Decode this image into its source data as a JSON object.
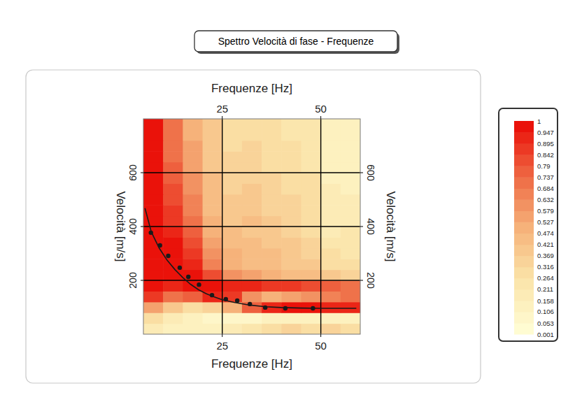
{
  "chart_data": {
    "type": "heatmap",
    "title": "Spettro Velocità di fase - Frequenze",
    "x_label": "Frequenze [Hz]",
    "y_label": "Velocità [m/s]",
    "xlim": [
      5,
      60
    ],
    "ylim": [
      0,
      800
    ],
    "xticks": [
      25,
      50
    ],
    "yticks": [
      200,
      400,
      600
    ],
    "grid": true,
    "cells": {
      "x_edges": [
        5,
        10,
        15,
        20,
        25,
        30,
        35,
        40,
        45,
        50,
        55,
        60
      ],
      "y_edges": [
        0,
        40,
        80,
        120,
        160,
        200,
        240,
        280,
        320,
        360,
        400,
        440,
        480,
        520,
        560,
        600,
        640,
        680,
        720,
        760,
        800
      ],
      "values": [
        [
          0.2,
          0.15,
          0.12,
          0.15,
          0.2,
          0.25,
          0.3,
          0.35,
          0.3,
          0.35,
          0.3
        ],
        [
          0.3,
          0.2,
          0.12,
          0.1,
          0.1,
          0.1,
          0.12,
          0.15,
          0.15,
          0.15,
          0.15
        ],
        [
          0.55,
          0.4,
          0.3,
          0.35,
          0.5,
          0.75,
          0.9,
          0.95,
          0.95,
          0.9,
          0.9
        ],
        [
          0.85,
          0.7,
          0.75,
          0.9,
          0.85,
          0.6,
          0.5,
          0.55,
          0.6,
          0.65,
          0.7
        ],
        [
          0.95,
          0.9,
          0.95,
          0.95,
          0.9,
          0.9,
          0.85,
          0.85,
          0.8,
          0.75,
          0.7
        ],
        [
          1,
          0.95,
          0.95,
          0.8,
          0.6,
          0.55,
          0.5,
          0.45,
          0.45,
          0.4,
          0.35
        ],
        [
          1,
          1,
          0.9,
          0.65,
          0.5,
          0.45,
          0.45,
          0.4,
          0.4,
          0.3,
          0.3
        ],
        [
          1,
          1,
          0.85,
          0.6,
          0.5,
          0.45,
          0.45,
          0.4,
          0.35,
          0.3,
          0.25
        ],
        [
          1,
          0.95,
          0.8,
          0.55,
          0.45,
          0.45,
          0.4,
          0.4,
          0.35,
          0.25,
          0.25
        ],
        [
          1,
          0.9,
          0.75,
          0.5,
          0.45,
          0.4,
          0.4,
          0.35,
          0.3,
          0.2,
          0.25
        ],
        [
          0.95,
          0.85,
          0.7,
          0.5,
          0.4,
          0.45,
          0.4,
          0.35,
          0.3,
          0.2,
          0.2
        ],
        [
          0.95,
          0.85,
          0.65,
          0.45,
          0.4,
          0.4,
          0.35,
          0.35,
          0.3,
          0.2,
          0.2
        ],
        [
          0.95,
          0.8,
          0.65,
          0.45,
          0.4,
          0.4,
          0.35,
          0.35,
          0.3,
          0.2,
          0.2
        ],
        [
          0.95,
          0.8,
          0.6,
          0.45,
          0.35,
          0.4,
          0.35,
          0.3,
          0.3,
          0.2,
          0.15
        ],
        [
          0.95,
          0.75,
          0.6,
          0.45,
          0.35,
          0.35,
          0.35,
          0.3,
          0.3,
          0.15,
          0.15
        ],
        [
          0.95,
          0.75,
          0.55,
          0.4,
          0.35,
          0.35,
          0.3,
          0.3,
          0.25,
          0.15,
          0.15
        ],
        [
          0.95,
          0.7,
          0.55,
          0.4,
          0.35,
          0.35,
          0.3,
          0.3,
          0.25,
          0.15,
          0.15
        ],
        [
          0.95,
          0.7,
          0.55,
          0.4,
          0.3,
          0.35,
          0.3,
          0.3,
          0.25,
          0.15,
          0.15
        ],
        [
          0.95,
          0.7,
          0.5,
          0.4,
          0.3,
          0.3,
          0.3,
          0.25,
          0.25,
          0.15,
          0.15
        ],
        [
          0.95,
          0.7,
          0.5,
          0.4,
          0.3,
          0.3,
          0.3,
          0.25,
          0.25,
          0.15,
          0.15
        ]
      ]
    },
    "colorbar": {
      "range": [
        0.001,
        1
      ],
      "ticks": [
        1,
        0.947,
        0.895,
        0.842,
        0.79,
        0.737,
        0.684,
        0.632,
        0.579,
        0.527,
        0.474,
        0.421,
        0.369,
        0.316,
        0.264,
        0.211,
        0.158,
        0.106,
        0.053,
        0.001
      ]
    },
    "series": [
      {
        "type": "scatter",
        "marker": "circle",
        "color": "#1a1a1a",
        "x": [
          6.9,
          9.2,
          11.3,
          14.2,
          16.4,
          19.1,
          22.4,
          25.9,
          28.8,
          32.0,
          35.9,
          41.0,
          48.0
        ],
        "values": [
          377,
          330,
          291,
          247,
          213,
          184,
          145,
          130,
          125,
          112,
          99,
          96,
          96
        ]
      },
      {
        "type": "line",
        "line_style": "solid",
        "color": "#1a1a1a",
        "x": [
          5.4,
          7,
          9,
          11,
          13,
          15,
          17,
          19,
          21,
          23,
          25,
          28,
          32,
          36,
          40,
          45,
          50,
          55,
          59
        ],
        "values": [
          468,
          380,
          320,
          275,
          240,
          210,
          185,
          165,
          150,
          138,
          128,
          118,
          108,
          102,
          99,
          97,
          96,
          96,
          96
        ]
      }
    ]
  }
}
